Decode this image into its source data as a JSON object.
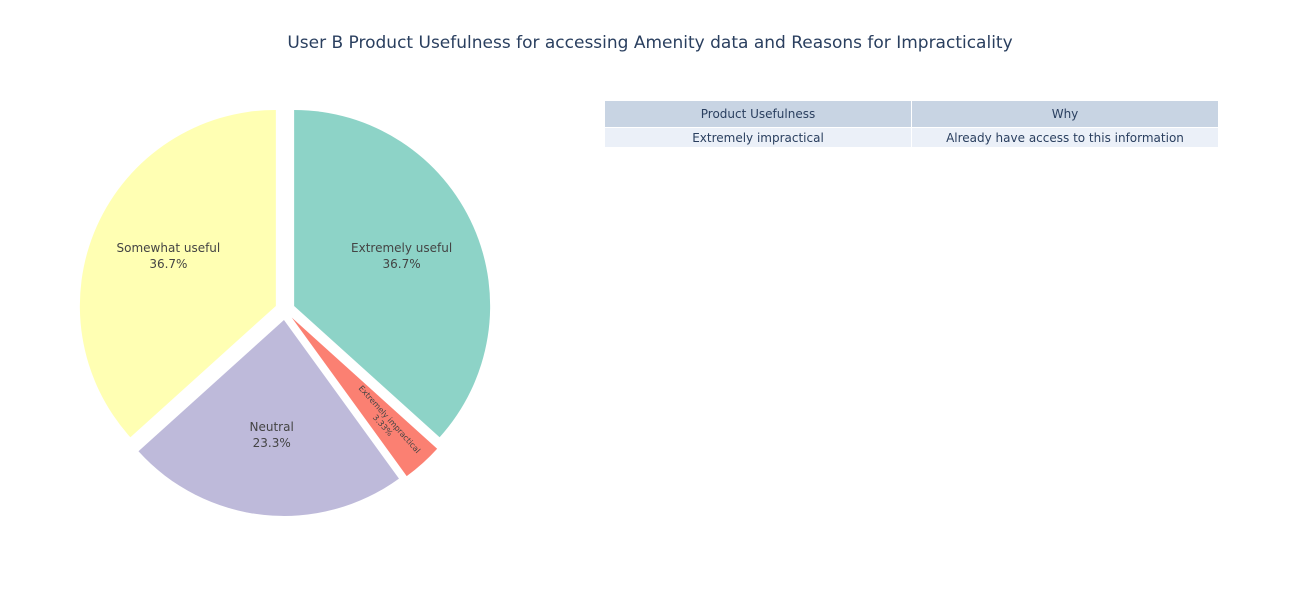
{
  "chart_data": [
    {
      "type": "pie",
      "title": "User B Product Usefulness for accessing Amenity data and Reasons for Impracticality",
      "labels": [
        "Extremely useful",
        "Extremely impractical",
        "Neutral",
        "Somewhat useful"
      ],
      "values": [
        36.7,
        3.33,
        23.3,
        36.7
      ],
      "percent_labels": [
        "36.7%",
        "3.33%",
        "23.3%",
        "36.7%"
      ],
      "colors": [
        "#8dd3c7",
        "#fb8072",
        "#bebada",
        "#ffffb3"
      ],
      "pulled": true
    },
    {
      "type": "table",
      "columns": [
        "Product Usefulness",
        "Why"
      ],
      "rows": [
        [
          "Extremely impractical",
          "Already have access to this information"
        ]
      ]
    }
  ]
}
